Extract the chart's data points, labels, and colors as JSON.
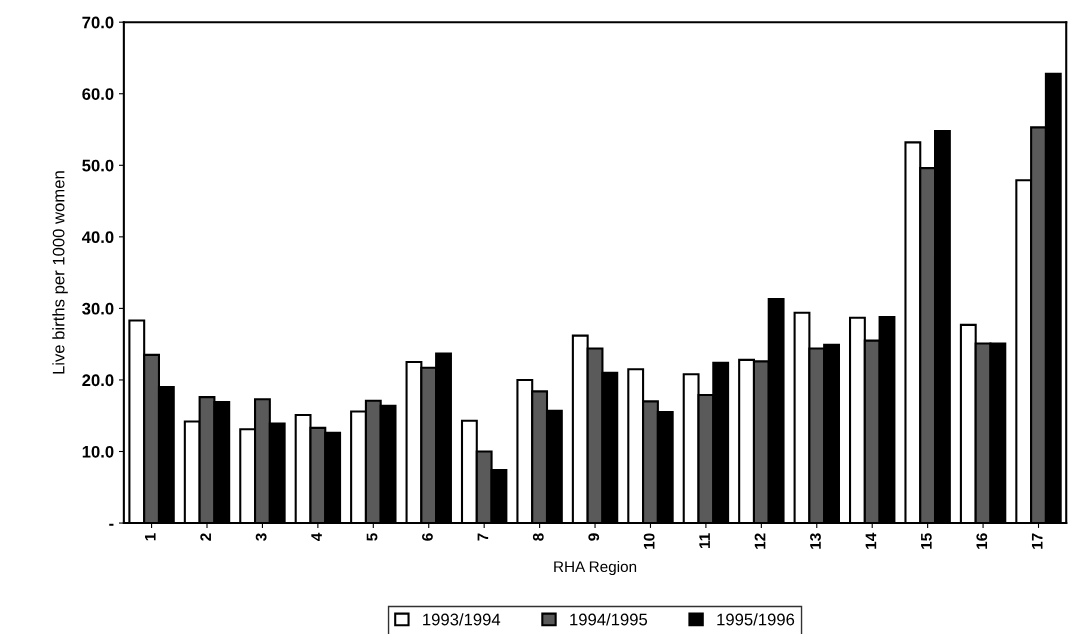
{
  "chart_data": {
    "type": "bar",
    "xlabel": "RHA Region",
    "ylabel": "Live births per 1000 women",
    "categories": [
      "1",
      "2",
      "3",
      "4",
      "5",
      "6",
      "7",
      "8",
      "9",
      "10",
      "11",
      "12",
      "13",
      "14",
      "15",
      "16",
      "17"
    ],
    "series": [
      {
        "name": "1993/1994",
        "color": "#ffffff",
        "values": [
          28.3,
          14.2,
          13.1,
          15.1,
          15.6,
          22.5,
          14.3,
          20.0,
          26.2,
          21.5,
          20.8,
          22.8,
          29.4,
          28.7,
          53.2,
          27.7,
          47.9
        ]
      },
      {
        "name": "1994/1995",
        "color": "#5a5a5a",
        "values": [
          23.5,
          17.6,
          17.3,
          13.3,
          17.1,
          21.7,
          10.0,
          18.4,
          24.4,
          17.0,
          17.9,
          22.6,
          24.4,
          25.5,
          49.6,
          25.1,
          55.3
        ]
      },
      {
        "name": "1995/1996",
        "color": "#000000",
        "values": [
          19.0,
          16.9,
          13.9,
          12.6,
          16.4,
          23.7,
          7.4,
          15.7,
          21.0,
          15.5,
          22.4,
          31.3,
          24.9,
          28.8,
          54.8,
          25.1,
          62.8
        ]
      }
    ],
    "ylim": [
      0,
      70
    ],
    "yticks": [
      {
        "value": 0,
        "label": "-"
      },
      {
        "value": 10,
        "label": "10.0"
      },
      {
        "value": 20,
        "label": "20.0"
      },
      {
        "value": 30,
        "label": "30.0"
      },
      {
        "value": 40,
        "label": "40.0"
      },
      {
        "value": 50,
        "label": "50.0"
      },
      {
        "value": 60,
        "label": "60.0"
      },
      {
        "value": 70,
        "label": "70.0"
      }
    ],
    "grid": false,
    "legend": "bottom"
  }
}
